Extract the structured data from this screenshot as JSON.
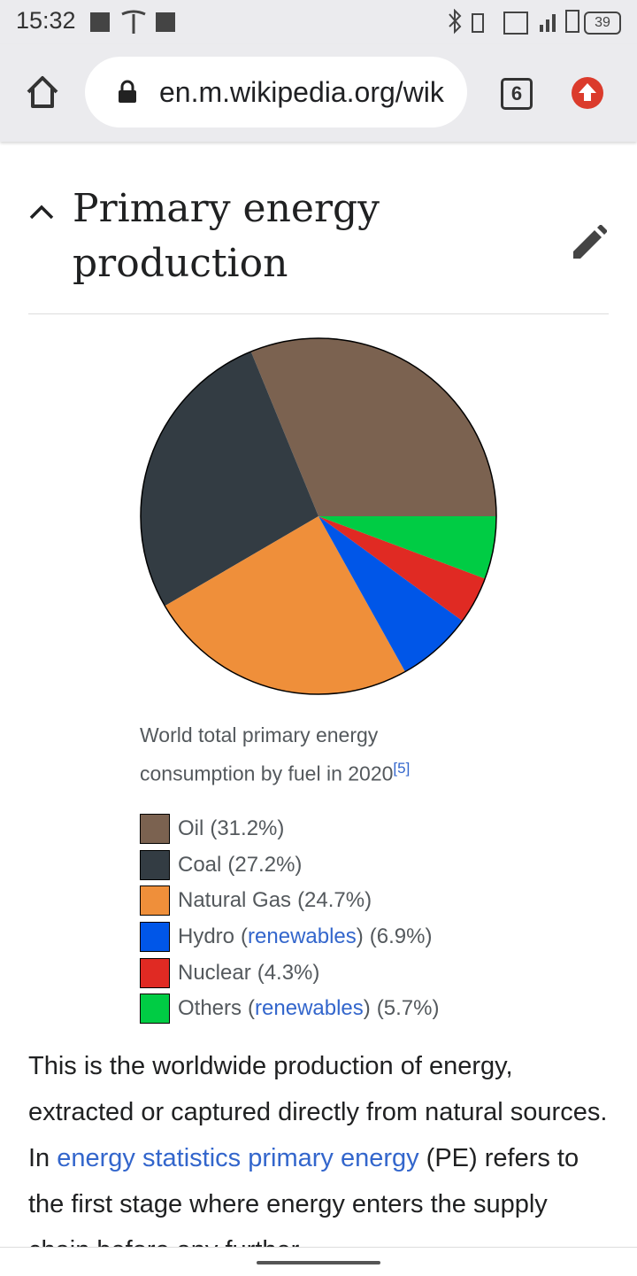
{
  "status_bar": {
    "time": "15:32",
    "battery": "39"
  },
  "browser": {
    "url": "en.m.wikipedia.org/wik",
    "tab_count": "6"
  },
  "section": {
    "title": "Primary energy production"
  },
  "chart_data": {
    "type": "pie",
    "caption": "World total primary energy consumption by fuel in 2020",
    "caption_ref": "[5]",
    "categories": [
      "Oil",
      "Coal",
      "Natural Gas",
      "Hydro",
      "Nuclear",
      "Others"
    ],
    "category_notes": [
      null,
      null,
      null,
      [
        "(",
        "renewables",
        ")"
      ],
      null,
      [
        "(",
        "renewables",
        ")"
      ]
    ],
    "values": [
      31.2,
      27.2,
      24.7,
      6.9,
      4.3,
      5.7
    ],
    "value_labels": [
      "(31.2%)",
      "(27.2%)",
      "(24.7%)",
      "(6.9%)",
      "(4.3%)",
      "(5.7%)"
    ],
    "colors": [
      "#7b6250",
      "#333c43",
      "#ef8f3a",
      "#0056e8",
      "#e02a23",
      "#00cc44"
    ],
    "direction": "counterclockwise",
    "start": "east"
  },
  "paragraph": [
    {
      "text": "This is the worldwide production of energy, extracted or captured directly from natural sources. In ",
      "link": false
    },
    {
      "text": "energy statistics primary energy",
      "link": true
    },
    {
      "text": " (PE) refers to the first stage where energy enters the supply chain before any further",
      "link": false
    }
  ]
}
